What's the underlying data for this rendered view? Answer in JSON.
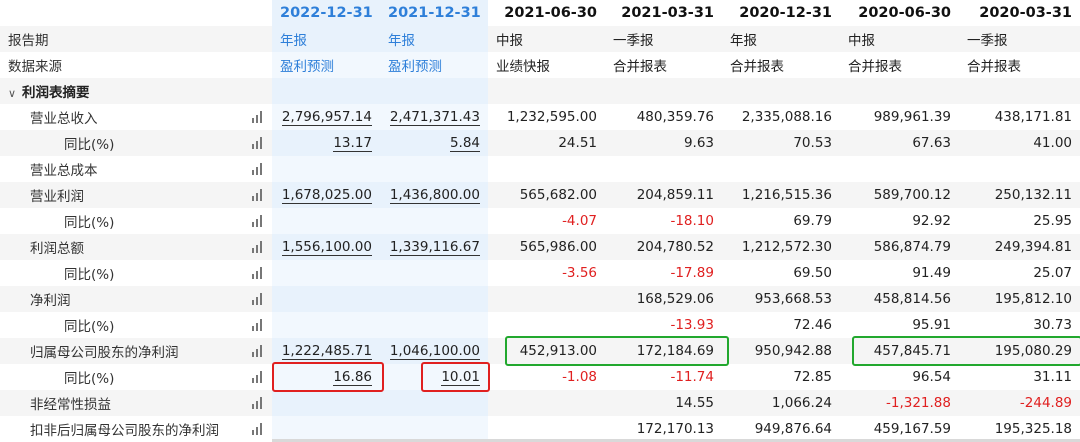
{
  "columns": [
    "2022-12-31",
    "2021-12-31",
    "2021-06-30",
    "2021-03-31",
    "2020-12-31",
    "2020-06-30",
    "2020-03-31"
  ],
  "meta_rows": [
    {
      "label": "报告期",
      "values": [
        "年报",
        "年报",
        "中报",
        "一季报",
        "年报",
        "中报",
        "一季报"
      ]
    },
    {
      "label": "数据来源",
      "values": [
        "盈利预测",
        "盈利预测",
        "业绩快报",
        "合并报表",
        "合并报表",
        "合并报表",
        "合并报表"
      ]
    }
  ],
  "section": {
    "label": "利润表摘要"
  },
  "rows": [
    {
      "label": "营业总收入",
      "indent": 1,
      "values": [
        "2,796,957.14",
        "2,471,371.43",
        "1,232,595.00",
        "480,359.76",
        "2,335,088.16",
        "989,961.39",
        "438,171.81"
      ]
    },
    {
      "label": "同比(%)",
      "indent": 2,
      "values": [
        "13.17",
        "5.84",
        "24.51",
        "9.63",
        "70.53",
        "67.63",
        "41.00"
      ]
    },
    {
      "label": "营业总成本",
      "indent": 1,
      "values": [
        "",
        "",
        "",
        "",
        "",
        "",
        ""
      ]
    },
    {
      "label": "营业利润",
      "indent": 1,
      "values": [
        "1,678,025.00",
        "1,436,800.00",
        "565,682.00",
        "204,859.11",
        "1,216,515.36",
        "589,700.12",
        "250,132.11"
      ]
    },
    {
      "label": "同比(%)",
      "indent": 2,
      "values": [
        "",
        "",
        "-4.07",
        "-18.10",
        "69.79",
        "92.92",
        "25.95"
      ]
    },
    {
      "label": "利润总额",
      "indent": 1,
      "values": [
        "1,556,100.00",
        "1,339,116.67",
        "565,986.00",
        "204,780.52",
        "1,212,572.30",
        "586,874.79",
        "249,394.81"
      ]
    },
    {
      "label": "同比(%)",
      "indent": 2,
      "values": [
        "",
        "",
        "-3.56",
        "-17.89",
        "69.50",
        "91.49",
        "25.07"
      ]
    },
    {
      "label": "净利润",
      "indent": 1,
      "values": [
        "",
        "",
        "",
        "168,529.06",
        "953,668.53",
        "458,814.56",
        "195,812.10"
      ]
    },
    {
      "label": "同比(%)",
      "indent": 2,
      "values": [
        "",
        "",
        "",
        "-13.93",
        "72.46",
        "95.91",
        "30.73"
      ]
    },
    {
      "label": "归属母公司股东的净利润",
      "indent": 1,
      "values": [
        "1,222,485.71",
        "1,046,100.00",
        "452,913.00",
        "172,184.69",
        "950,942.88",
        "457,845.71",
        "195,080.29"
      ]
    },
    {
      "label": "同比(%)",
      "indent": 2,
      "values": [
        "16.86",
        "10.01",
        "-1.08",
        "-11.74",
        "72.85",
        "96.54",
        "31.11"
      ]
    },
    {
      "label": "非经常性损益",
      "indent": 1,
      "values": [
        "",
        "",
        "",
        "14.55",
        "1,066.24",
        "-1,321.88",
        "-244.89"
      ]
    },
    {
      "label": "扣非后归属母公司股东的净利润",
      "indent": 1,
      "values": [
        "",
        "",
        "",
        "172,170.13",
        "949,876.64",
        "459,167.59",
        "195,325.18"
      ]
    }
  ]
}
